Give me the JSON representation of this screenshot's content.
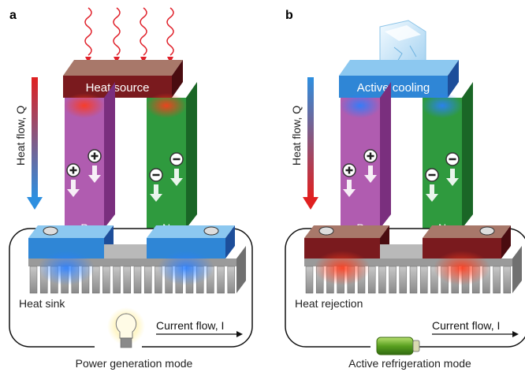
{
  "panels": [
    {
      "label": "a",
      "top_label": "Heat source",
      "flow_label": "Heat flow, Q",
      "legs": [
        "P",
        "N"
      ],
      "bottom_label": "Heat sink",
      "current_label": "Current flow, I",
      "caption": "Power generation mode"
    },
    {
      "label": "b",
      "top_label": "Active cooling",
      "flow_label": "Heat flow, Q",
      "legs": [
        "P",
        "N"
      ],
      "bottom_label": "Heat rejection",
      "current_label": "Current flow, I",
      "caption": "Active refrigeration mode"
    }
  ]
}
